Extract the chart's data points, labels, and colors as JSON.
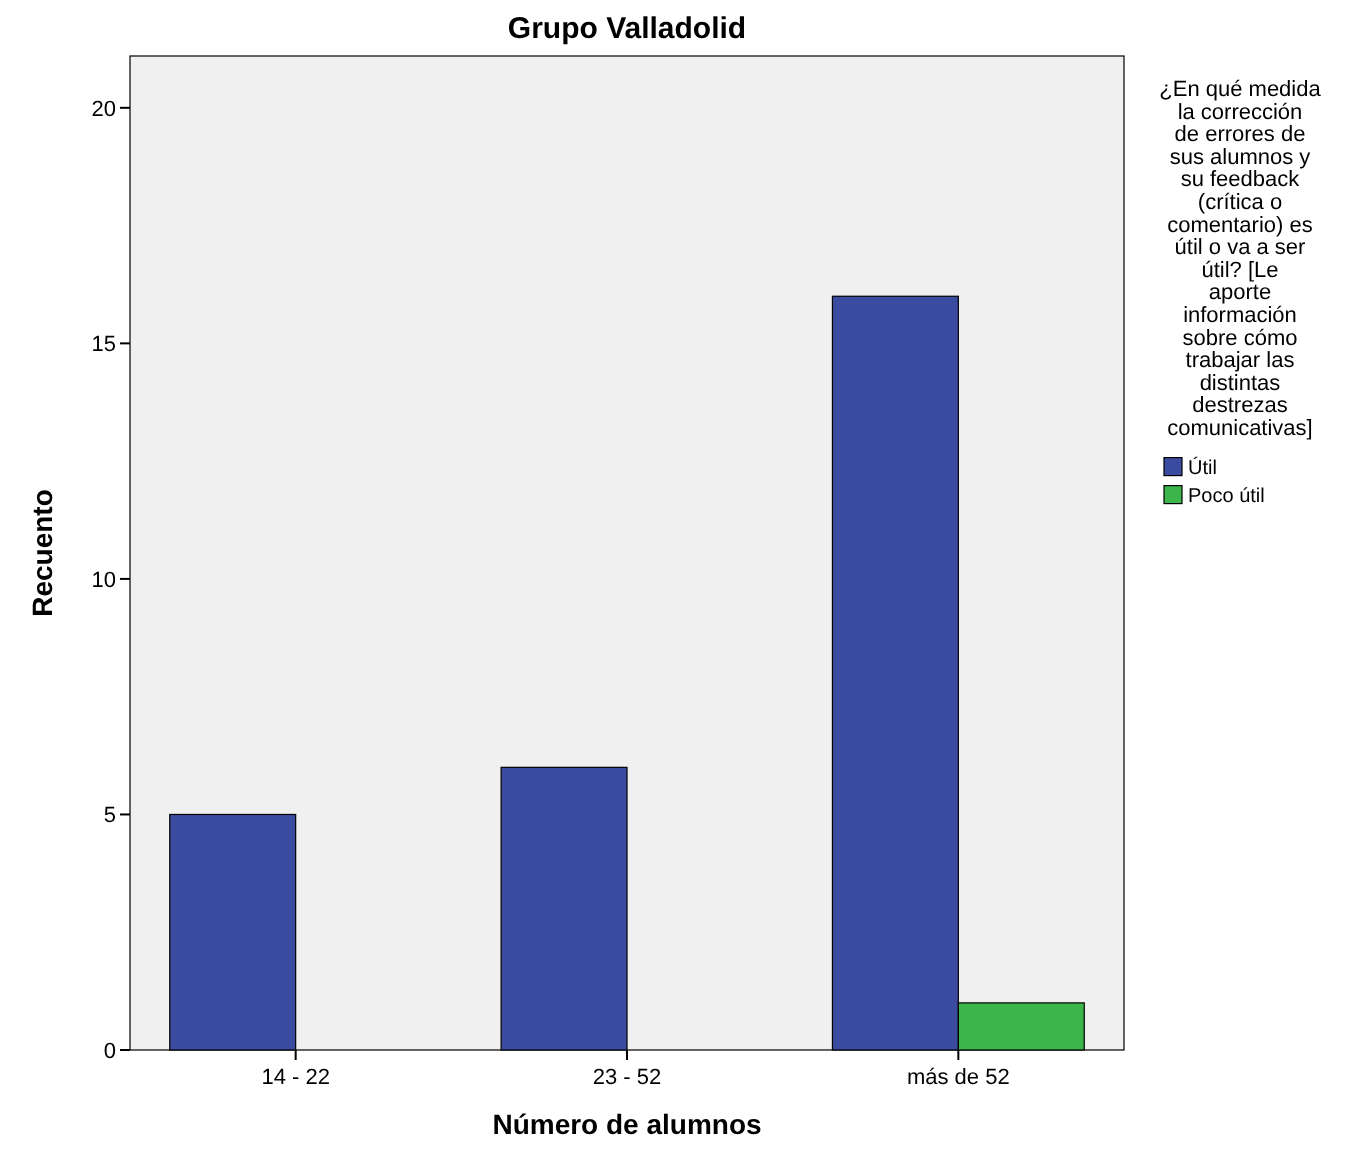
{
  "chart_data": {
    "type": "bar",
    "title": "Grupo Valladolid",
    "xlabel": "Número de alumnos",
    "ylabel": "Recuento",
    "legend_title": "¿En qué medida la corrección de errores de sus alumnos y su feedback (crítica o comentario) es útil o va a ser útil? [Le aporte información sobre cómo trabajar las distintas destrezas comunicativas]",
    "categories": [
      "14 - 22",
      "23 - 52",
      "más de 52"
    ],
    "series": [
      {
        "name": "Útil",
        "color": "#3a4ba0",
        "values": [
          5,
          6,
          16
        ]
      },
      {
        "name": "Poco útil",
        "color": "#3cb54a",
        "values": [
          null,
          null,
          1
        ]
      }
    ],
    "ylim": [
      0,
      21.1
    ],
    "yticks": [
      0,
      5,
      10,
      15,
      20
    ],
    "legend": "right",
    "grid": false
  }
}
